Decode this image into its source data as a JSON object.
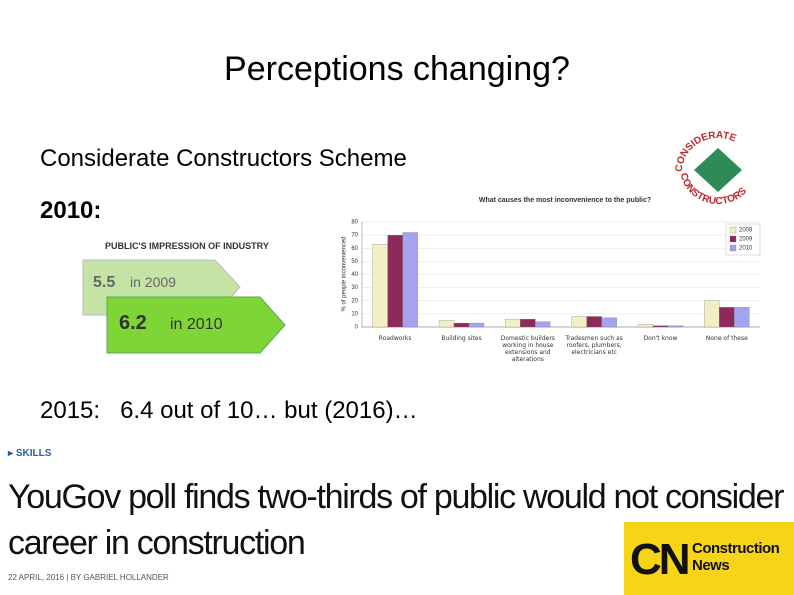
{
  "title": "Perceptions changing?",
  "subtitle": "Considerate Constructors Scheme",
  "label_2010": "2010:",
  "line_2015": "2015:   6.4 out of 10… but (2016)…",
  "considerate_logo": {
    "top": "CONSIDERATE",
    "bottom": "CONSTRUCTORS"
  },
  "impression": {
    "heading": "PUBLIC'S IMPRESSION OF INDUSTRY",
    "items": [
      {
        "score": "5.5",
        "year": "in 2009"
      },
      {
        "score": "6.2",
        "year": "in 2010"
      }
    ]
  },
  "chart_data": {
    "type": "bar",
    "title": "What causes the most inconvenience to the public?",
    "y_label": "% of people inconvenienced",
    "categories": [
      "Roadworks",
      "Building sites",
      "Domestic builders working in house extensions and alterations",
      "Tradesmen such as roofers, plumbers, electricians etc",
      "Don't know",
      "None of these"
    ],
    "series": [
      {
        "name": "2008",
        "color": "#f3efc4",
        "values": [
          63,
          5,
          6,
          8,
          2,
          20
        ]
      },
      {
        "name": "2009",
        "color": "#8e2a5a",
        "values": [
          70,
          3,
          6,
          8,
          1,
          15
        ]
      },
      {
        "name": "2010",
        "color": "#a3a3f0",
        "values": [
          72,
          3,
          4,
          7,
          1,
          15
        ]
      }
    ],
    "ylim": [
      0,
      80
    ],
    "yticks": [
      0,
      10,
      20,
      30,
      40,
      50,
      60,
      70,
      80
    ],
    "grid": true,
    "legend": "top-right"
  },
  "news": {
    "section": "SKILLS",
    "headline": "YouGov poll finds two-thirds of public would not consider career in construction",
    "byline": "22 APRIL, 2016 | BY GABRIEL HOLLANDER"
  },
  "cn_logo": {
    "initials": "CN",
    "name": "Construction News"
  }
}
